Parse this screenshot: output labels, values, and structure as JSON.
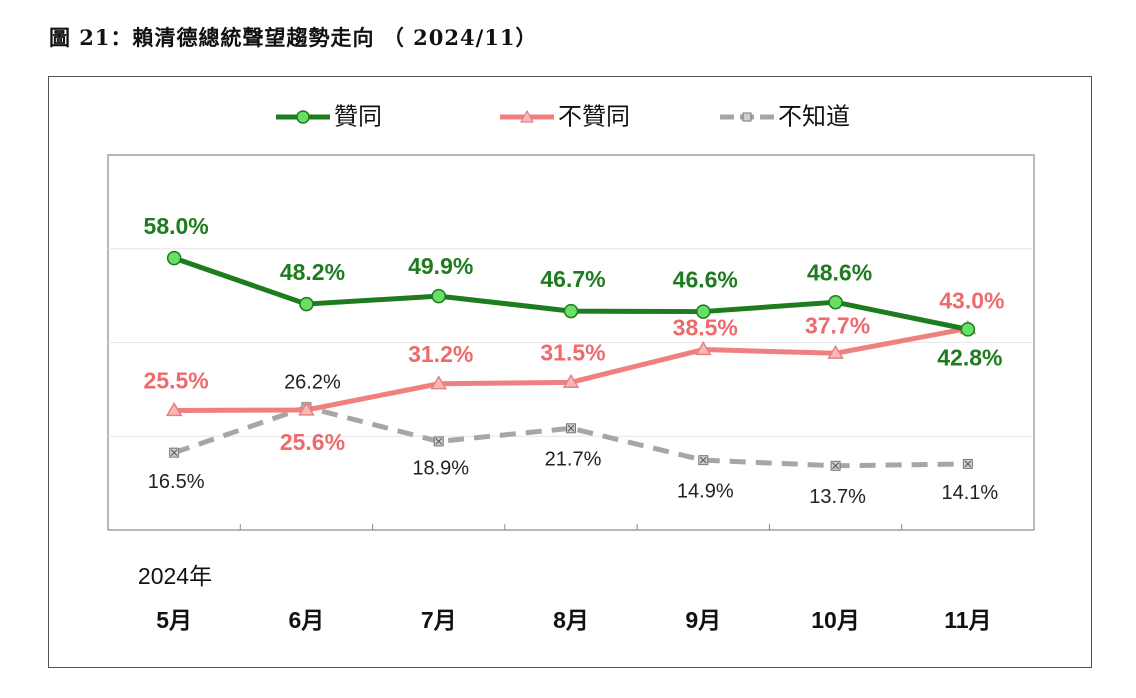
{
  "figure_title": "圖 21：賴清德總統聲望趨勢走向 （ 2024/11）",
  "chart_data": {
    "type": "line",
    "year_label": "2024年",
    "categories": [
      "5月",
      "6月",
      "7月",
      "8月",
      "9月",
      "10月",
      "11月"
    ],
    "ylim": [
      0,
      80
    ],
    "grid": true,
    "legend_position": "top",
    "series": [
      {
        "name": "贊同",
        "color": "#1e7b1e",
        "marker": "circle",
        "values": [
          58.0,
          48.2,
          49.9,
          46.7,
          46.6,
          48.6,
          42.8
        ],
        "labels": [
          "58.0%",
          "48.2%",
          "49.9%",
          "46.7%",
          "46.6%",
          "48.6%",
          "42.8%"
        ]
      },
      {
        "name": "不贊同",
        "color": "#f08080",
        "marker": "triangle",
        "values": [
          25.5,
          25.6,
          31.2,
          31.5,
          38.5,
          37.7,
          43.0
        ],
        "labels": [
          "25.5%",
          "25.6%",
          "31.2%",
          "31.5%",
          "38.5%",
          "37.7%",
          "43.0%"
        ]
      },
      {
        "name": "不知道",
        "color": "#a6a6a6",
        "marker": "square-x",
        "dashed": true,
        "values": [
          16.5,
          26.2,
          18.9,
          21.7,
          14.9,
          13.7,
          14.1
        ],
        "labels": [
          "16.5%",
          "26.2%",
          "18.9%",
          "21.7%",
          "14.9%",
          "13.7%",
          "14.1%"
        ]
      }
    ]
  }
}
